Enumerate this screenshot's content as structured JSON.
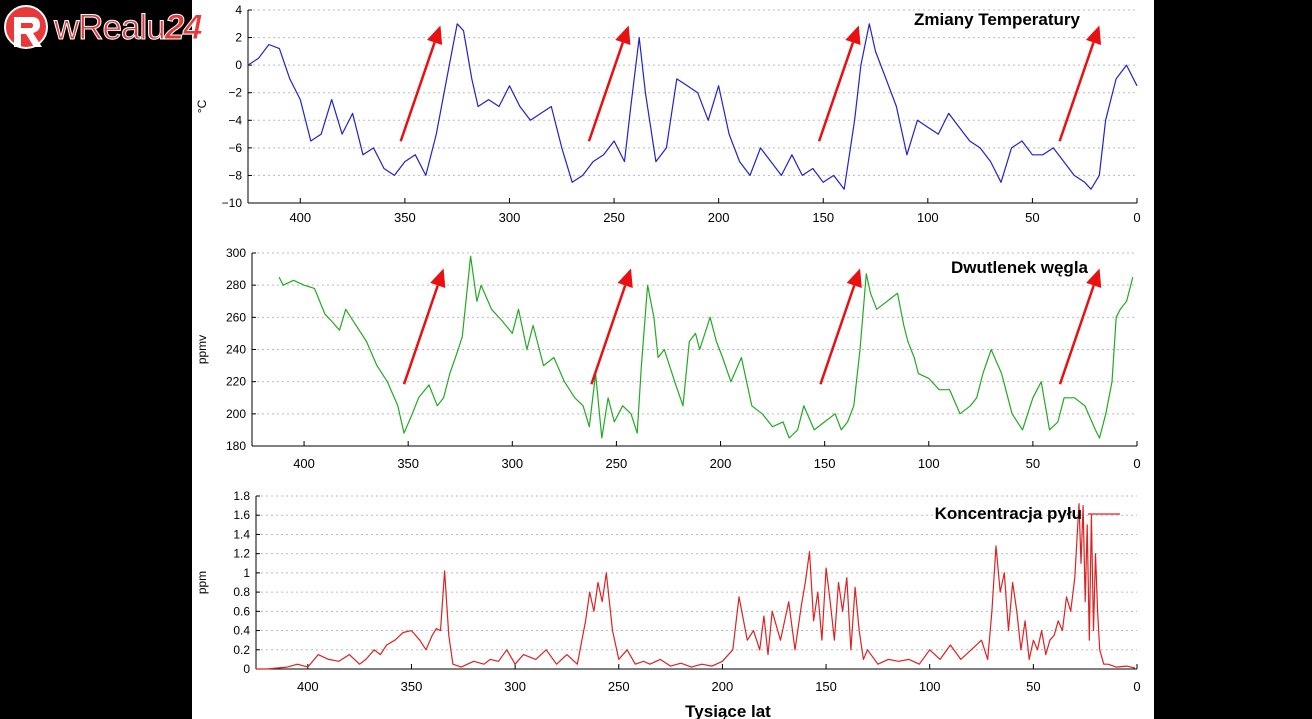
{
  "logo": {
    "part1": "wRealu",
    "part2": "24",
    "color": "#e8383a"
  },
  "xaxis": {
    "label": "Tysiące lat",
    "ticks": [
      "400",
      "350",
      "300",
      "250",
      "200",
      "150",
      "100",
      "50",
      "0"
    ],
    "tick_values": [
      400,
      350,
      300,
      250,
      200,
      150,
      100,
      50,
      0
    ],
    "range": [
      425,
      0
    ]
  },
  "chart_data": [
    {
      "type": "line",
      "title": "Zmiany Temperatury",
      "ylabel": "°C",
      "color": "#2222cc",
      "ylim": [
        -10,
        4
      ],
      "yticks": [
        "4",
        "2",
        "0",
        "−2",
        "−4",
        "−6",
        "−8",
        "−10"
      ],
      "ytick_values": [
        4,
        2,
        0,
        -2,
        -4,
        -6,
        -8,
        -10
      ],
      "grid": true,
      "arrows_x": [
        [
          352,
          333
        ],
        [
          262,
          243
        ],
        [
          152,
          133
        ],
        [
          37,
          18
        ]
      ],
      "x": [
        425,
        420,
        415,
        410,
        405,
        400,
        395,
        390,
        385,
        380,
        375,
        370,
        365,
        360,
        355,
        350,
        345,
        340,
        335,
        330,
        325,
        322,
        318,
        315,
        310,
        305,
        300,
        295,
        290,
        285,
        280,
        275,
        270,
        265,
        260,
        255,
        250,
        245,
        242,
        238,
        235,
        230,
        225,
        220,
        215,
        210,
        205,
        200,
        195,
        190,
        185,
        180,
        175,
        170,
        165,
        160,
        155,
        150,
        145,
        140,
        135,
        132,
        128,
        125,
        120,
        115,
        110,
        105,
        100,
        95,
        90,
        85,
        80,
        75,
        70,
        65,
        60,
        55,
        50,
        45,
        40,
        35,
        30,
        25,
        22,
        18,
        15,
        10,
        5,
        0
      ],
      "values": [
        0,
        0.5,
        1.5,
        1.2,
        -1,
        -2.5,
        -5.5,
        -5,
        -2.5,
        -5,
        -3.5,
        -6.5,
        -6,
        -7.5,
        -8,
        -7,
        -6.5,
        -8,
        -5,
        -1,
        3,
        2.5,
        -1,
        -3,
        -2.5,
        -3,
        -1.5,
        -3,
        -4,
        -3.5,
        -3,
        -6,
        -8.5,
        -8,
        -7,
        -6.5,
        -5.5,
        -7,
        -3,
        2,
        -2,
        -7,
        -6,
        -1,
        -1.5,
        -2,
        -4,
        -1.5,
        -5,
        -7,
        -8,
        -6,
        -7,
        -8,
        -6.5,
        -8,
        -7.5,
        -8.5,
        -8,
        -9,
        -4,
        0,
        3,
        1,
        -1,
        -3,
        -6.5,
        -4,
        -4.5,
        -5,
        -3.5,
        -4.5,
        -5.5,
        -6,
        -7,
        -8.5,
        -6,
        -5.5,
        -6.5,
        -6.5,
        -6,
        -7,
        -8,
        -8.5,
        -9,
        -8,
        -4,
        -1,
        0,
        -1.5
      ]
    },
    {
      "type": "line",
      "title": "Dwutlenek węgla",
      "ylabel": "ppmv",
      "color": "#22aa22",
      "ylim": [
        180,
        300
      ],
      "yticks": [
        "300",
        "280",
        "260",
        "240",
        "220",
        "200",
        "180"
      ],
      "ytick_values": [
        300,
        280,
        260,
        240,
        220,
        200,
        180
      ],
      "grid": true,
      "arrows_x": [
        [
          352,
          333
        ],
        [
          262,
          243
        ],
        [
          152,
          133
        ],
        [
          37,
          18
        ]
      ],
      "x": [
        412,
        410,
        405,
        400,
        395,
        390,
        387,
        383,
        380,
        375,
        370,
        365,
        360,
        355,
        352,
        348,
        345,
        340,
        336,
        333,
        330,
        326,
        324,
        320,
        317,
        315,
        310,
        305,
        300,
        297,
        293,
        290,
        285,
        280,
        275,
        270,
        266,
        263,
        260,
        257,
        254,
        251,
        247,
        243,
        240,
        238,
        235,
        232,
        230,
        227,
        222,
        218,
        215,
        212,
        210,
        205,
        202,
        199,
        195,
        190,
        185,
        180,
        175,
        170,
        167,
        163,
        160,
        155,
        150,
        145,
        142,
        139,
        136,
        133,
        130,
        128,
        125,
        120,
        115,
        112,
        110,
        107,
        105,
        100,
        95,
        90,
        85,
        80,
        77,
        74,
        70,
        65,
        60,
        55,
        50,
        46,
        42,
        38,
        35,
        30,
        25,
        20,
        18,
        15,
        12,
        10,
        8,
        5,
        2
      ],
      "values": [
        285,
        280,
        283,
        280,
        278,
        262,
        258,
        252,
        265,
        255,
        245,
        230,
        220,
        205,
        188,
        200,
        210,
        218,
        205,
        210,
        225,
        240,
        248,
        298,
        270,
        280,
        265,
        258,
        250,
        265,
        240,
        255,
        230,
        235,
        220,
        210,
        205,
        192,
        225,
        185,
        210,
        195,
        205,
        200,
        188,
        230,
        280,
        260,
        235,
        240,
        220,
        205,
        245,
        250,
        240,
        260,
        245,
        235,
        220,
        235,
        205,
        200,
        192,
        195,
        185,
        190,
        205,
        190,
        195,
        200,
        190,
        195,
        205,
        240,
        287,
        275,
        265,
        270,
        275,
        255,
        245,
        235,
        225,
        222,
        215,
        215,
        200,
        205,
        210,
        225,
        240,
        225,
        200,
        190,
        210,
        220,
        190,
        195,
        210,
        210,
        205,
        190,
        185,
        200,
        220,
        260,
        265,
        270,
        285
      ]
    },
    {
      "type": "line",
      "title": "Koncentracja pyłu",
      "ylabel": "ppm",
      "color": "#dd2222",
      "ylim": [
        0,
        1.8
      ],
      "yticks": [
        "1.8",
        "1.6",
        "1.4",
        "1.2",
        "1",
        "0.8",
        "0.6",
        "0.4",
        "0.2",
        "0"
      ],
      "ytick_values": [
        1.8,
        1.6,
        1.4,
        1.2,
        1,
        0.8,
        0.6,
        0.4,
        0.2,
        0
      ],
      "grid": true,
      "x": [
        425,
        420,
        410,
        405,
        400,
        395,
        390,
        385,
        380,
        375,
        372,
        368,
        365,
        362,
        358,
        354,
        350,
        346,
        343,
        340,
        338,
        336,
        334,
        332,
        330,
        326,
        320,
        315,
        312,
        308,
        304,
        300,
        296,
        290,
        285,
        280,
        275,
        270,
        266,
        264,
        262,
        260,
        258,
        256,
        253,
        250,
        246,
        242,
        238,
        235,
        230,
        225,
        220,
        215,
        210,
        205,
        200,
        195,
        192,
        188,
        185,
        182,
        180,
        178,
        176,
        172,
        168,
        165,
        162,
        160,
        158,
        156,
        154,
        152,
        150,
        148,
        146,
        144,
        142,
        140,
        138,
        136,
        134,
        132,
        130,
        125,
        120,
        115,
        110,
        105,
        100,
        95,
        90,
        85,
        80,
        75,
        72,
        70,
        68,
        66,
        64,
        62,
        60,
        58,
        56,
        54,
        52,
        50,
        48,
        46,
        44,
        42,
        40,
        38,
        36,
        34,
        32,
        30,
        28,
        27,
        26,
        25,
        24,
        23,
        22,
        21,
        20,
        19,
        18,
        16,
        14,
        10,
        5,
        3,
        1
      ],
      "values": [
        0,
        0,
        0.02,
        0.05,
        0.02,
        0.15,
        0.1,
        0.08,
        0.15,
        0.05,
        0.1,
        0.2,
        0.15,
        0.25,
        0.3,
        0.38,
        0.4,
        0.3,
        0.2,
        0.35,
        0.42,
        0.4,
        1.02,
        0.35,
        0.05,
        0.02,
        0.08,
        0.05,
        0.1,
        0.08,
        0.2,
        0.05,
        0.15,
        0.1,
        0.2,
        0.05,
        0.15,
        0.05,
        0.5,
        0.8,
        0.6,
        0.9,
        0.7,
        1.0,
        0.4,
        0.1,
        0.2,
        0.05,
        0.08,
        0.05,
        0.1,
        0.03,
        0.06,
        0.02,
        0.05,
        0.03,
        0.08,
        0.2,
        0.75,
        0.3,
        0.4,
        0.2,
        0.55,
        0.15,
        0.6,
        0.3,
        0.7,
        0.2,
        0.65,
        0.9,
        1.22,
        0.5,
        0.8,
        0.3,
        1.05,
        0.7,
        0.3,
        0.9,
        0.6,
        0.95,
        0.2,
        0.85,
        0.4,
        0.1,
        0.2,
        0.05,
        0.1,
        0.08,
        0.1,
        0.05,
        0.2,
        0.1,
        0.25,
        0.1,
        0.2,
        0.3,
        0.1,
        0.6,
        1.28,
        0.8,
        1.0,
        0.4,
        0.9,
        0.6,
        0.2,
        0.5,
        0.1,
        0.3,
        0.2,
        0.4,
        0.15,
        0.3,
        0.35,
        0.5,
        0.4,
        0.75,
        0.6,
        0.95,
        1.72,
        1.1,
        1.7,
        0.7,
        1.5,
        0.3,
        1.6,
        0.4,
        1.2,
        0.6,
        0.2,
        0.05,
        0.05,
        0.02,
        0.03,
        0.02,
        0.01
      ]
    }
  ]
}
